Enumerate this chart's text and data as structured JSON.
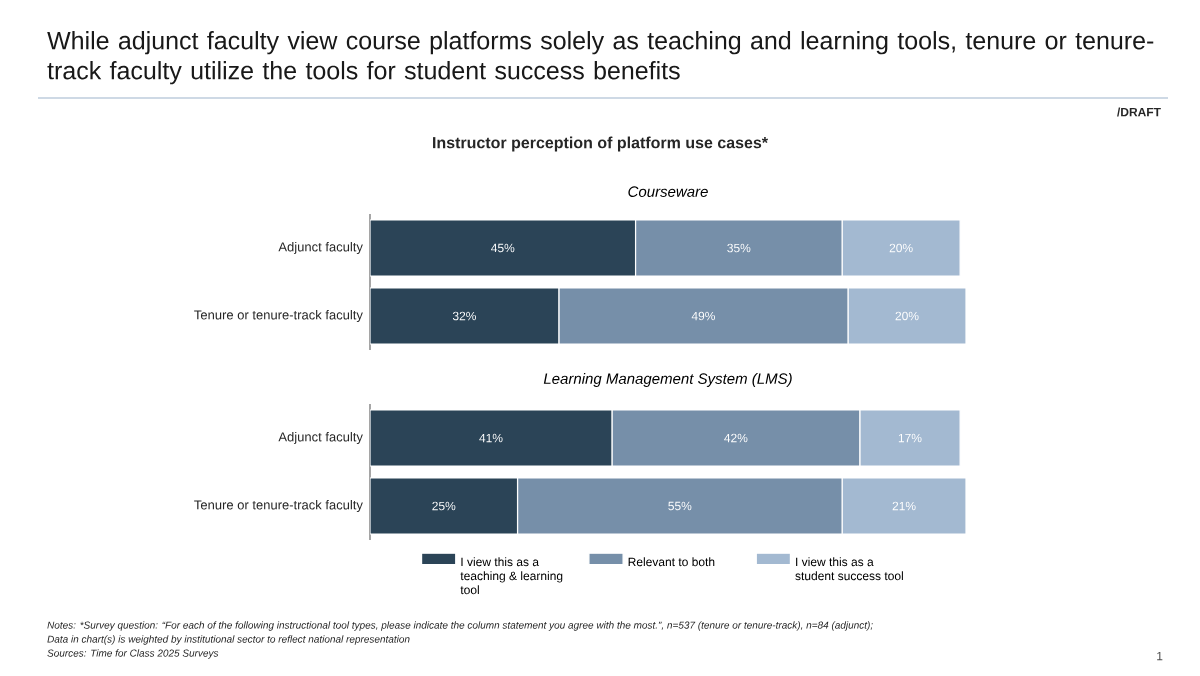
{
  "chart_data": [
    {
      "type": "bar",
      "orientation": "horizontal",
      "stacked": true,
      "title": "Courseware",
      "categories": [
        "Adjunct faculty",
        "Tenure or tenure-track faculty"
      ],
      "series": [
        {
          "color": "#2b4457",
          "values": [
            45,
            32
          ],
          "value_labels": [
            "45%",
            "32%"
          ]
        },
        {
          "color": "#768fa9",
          "values": [
            35,
            49
          ],
          "value_labels": [
            "35%",
            "49%"
          ]
        },
        {
          "color": "#a3b9d1",
          "values": [
            20,
            20
          ],
          "value_labels": [
            "20%",
            "20%"
          ]
        }
      ],
      "xlim": [
        0,
        101
      ],
      "tick_labels": "y",
      "legend": false,
      "annotations": [
        "While adjunct faculty view course platforms solely as teaching and learning tools, tenure or tenure-track faculty utilize the tools for student success benefits",
        "/DRAFT",
        "Instructor perception of platform use cases*",
        "Notes: *Survey question: “For each of the following instructional tool types, please indicate the column statement you agree with the most.”, n=537 (tenure or tenure-track), n=84 (adjunct);",
        "Data in chart(s) is weighted by institutional sector to reflect national representation",
        "Sources: Time for Class 2025 Surveys",
        "1"
      ]
    },
    {
      "type": "bar",
      "orientation": "horizontal",
      "stacked": true,
      "title": "Learning Management System (LMS)",
      "categories": [
        "Adjunct faculty",
        "Tenure or tenure-track faculty"
      ],
      "series": [
        {
          "name": "I view this as a teaching & learning tool",
          "color": "#2b4457",
          "values": [
            41,
            25
          ],
          "value_labels": [
            "41%",
            "25%"
          ]
        },
        {
          "name": "Relevant to both",
          "color": "#768fa9",
          "values": [
            42,
            55
          ],
          "value_labels": [
            "42%",
            "55%"
          ]
        },
        {
          "name": "I view this as a student success tool",
          "color": "#a3b9d1",
          "values": [
            17,
            21
          ],
          "value_labels": [
            "17%",
            "21%"
          ]
        }
      ],
      "xlim": [
        0,
        101
      ],
      "tick_labels": "y",
      "legend": "bottom"
    }
  ]
}
